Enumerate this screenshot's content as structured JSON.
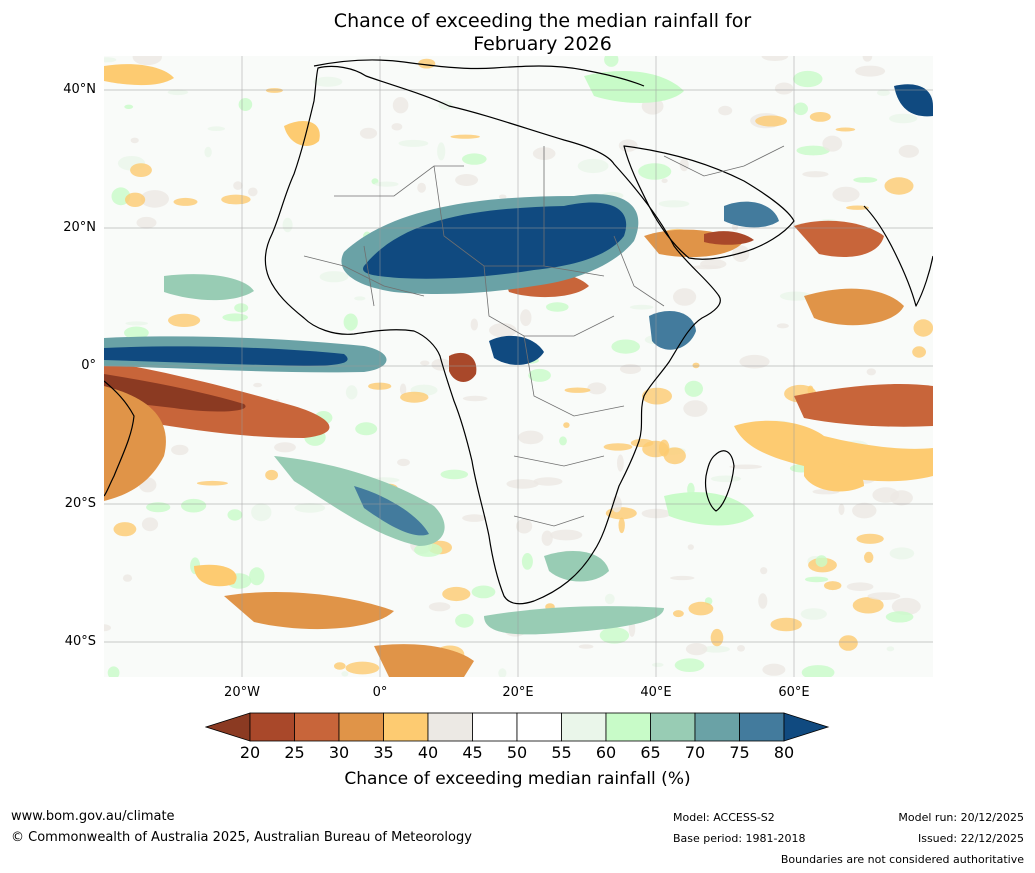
{
  "title": {
    "line1": "Chance of exceeding the median rainfall for",
    "line2": "February 2026"
  },
  "map": {
    "lat_labels": [
      "40°N",
      "20°N",
      "0°",
      "20°S",
      "40°S"
    ],
    "lon_labels": [
      "20°W",
      "0°",
      "20°E",
      "40°E",
      "60°E"
    ],
    "colors": {
      "land_outline": "#000000",
      "borders": "#707070",
      "gridlines": "#9a9a9a",
      "contour_lines": "#8c8c8c"
    },
    "regions_described": {
      "wet_north_africa_band": "80",
      "wet_equatorial_atlantic": "80",
      "dry_southeast_atlantic": "20"
    }
  },
  "colorbar": {
    "ticks": [
      "20",
      "25",
      "30",
      "35",
      "40",
      "45",
      "50",
      "55",
      "60",
      "65",
      "70",
      "75",
      "80"
    ],
    "colors": [
      "#8b3a22",
      "#a9482a",
      "#c8653a",
      "#e09448",
      "#fdcb71",
      "#ece9e4",
      "#ffffff",
      "#ffffff",
      "#eaf6ea",
      "#c8fbc8",
      "#98ccb4",
      "#6aa2a6",
      "#437b9d",
      "#104a80"
    ],
    "label": "Chance of exceeding median rainfall (%)"
  },
  "footer": {
    "website": "www.bom.gov.au/climate",
    "copyright": "© Commonwealth of Australia 2025, Australian Bureau of Meteorology",
    "model": "Model: ACCESS-S2",
    "base_period": "Base period: 1981-2018",
    "model_run": "Model run: 20/12/2025",
    "issued": "Issued: 22/12/2025",
    "disclaimer": "Boundaries are not considered authoritative"
  }
}
